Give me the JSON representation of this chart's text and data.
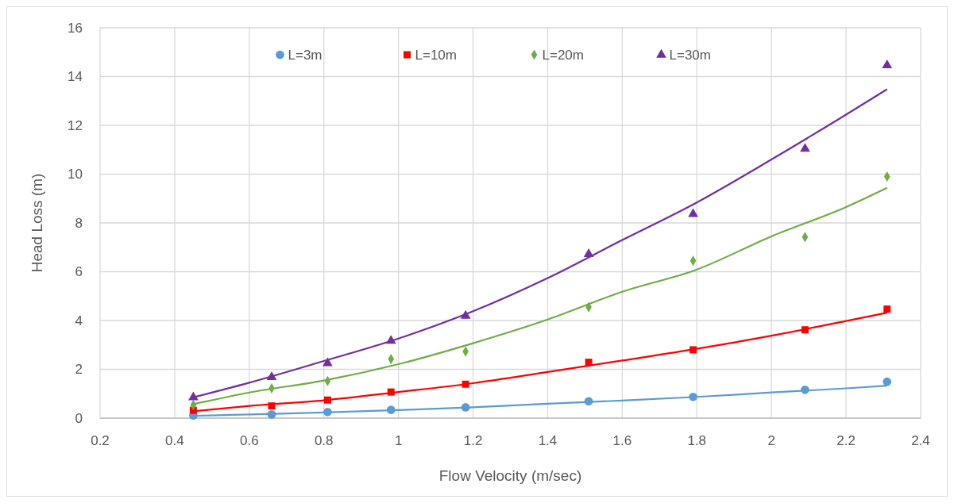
{
  "chart_data": {
    "type": "scatter",
    "xlabel": "Flow Velocity (m/sec)",
    "ylabel": "Head Loss (m)",
    "xlim": [
      0.2,
      2.4
    ],
    "xticks": [
      0.2,
      0.4,
      0.6,
      0.8,
      1,
      1.2,
      1.4,
      1.6,
      1.8,
      2,
      2.2,
      2.4
    ],
    "ylim": [
      0,
      16
    ],
    "yticks": [
      0,
      2,
      4,
      6,
      8,
      10,
      12,
      14,
      16
    ],
    "grid": true,
    "legend": "top",
    "x": [
      0.45,
      0.66,
      0.81,
      0.98,
      1.18,
      1.51,
      1.79,
      2.09,
      2.31
    ],
    "series": [
      {
        "name": "L=3m",
        "color": "#5b9bd5",
        "marker": "circle",
        "values": [
          0.11,
          0.15,
          0.25,
          0.34,
          0.44,
          0.69,
          0.87,
          1.16,
          1.49
        ]
      },
      {
        "name": "L=10m",
        "color": "#ff0000",
        "marker": "square",
        "values": [
          0.32,
          0.5,
          0.74,
          1.07,
          1.39,
          2.29,
          2.8,
          3.62,
          4.47
        ]
      },
      {
        "name": "L=20m",
        "color": "#70ad47",
        "marker": "diamond",
        "values": [
          0.54,
          1.22,
          1.52,
          2.42,
          2.73,
          4.55,
          6.45,
          7.42,
          9.9
        ]
      },
      {
        "name": "L=30m",
        "color": "#7030a0",
        "marker": "triangle",
        "values": [
          0.85,
          1.68,
          2.25,
          3.17,
          4.19,
          6.72,
          8.36,
          11.04,
          14.46
        ]
      },
      {
        "type": "line",
        "color": "#5b9bd5",
        "marker": "none",
        "x": [
          0.45,
          0.6,
          0.8,
          1,
          1.2,
          1.4,
          1.6,
          1.8,
          2,
          2.2,
          2.31
        ],
        "values": [
          0.09,
          0.15,
          0.23,
          0.33,
          0.44,
          0.59,
          0.72,
          0.87,
          1.05,
          1.22,
          1.33
        ]
      },
      {
        "type": "line",
        "color": "#ff0000",
        "marker": "none",
        "x": [
          0.45,
          0.6,
          0.8,
          1,
          1.2,
          1.4,
          1.6,
          1.8,
          2,
          2.2,
          2.31
        ],
        "values": [
          0.28,
          0.5,
          0.73,
          1.07,
          1.43,
          1.89,
          2.36,
          2.84,
          3.38,
          3.98,
          4.32
        ]
      },
      {
        "type": "line",
        "color": "#70ad47",
        "marker": "none",
        "x": [
          0.45,
          0.6,
          0.8,
          1,
          1.2,
          1.4,
          1.6,
          1.8,
          2,
          2.2,
          2.31
        ],
        "values": [
          0.57,
          1.05,
          1.54,
          2.21,
          3.07,
          4.04,
          5.18,
          6.09,
          7.45,
          8.65,
          9.44
        ]
      },
      {
        "type": "line",
        "color": "#7030a0",
        "marker": "none",
        "x": [
          0.45,
          0.6,
          0.8,
          1,
          1.2,
          1.4,
          1.6,
          1.8,
          2,
          2.2,
          2.31
        ],
        "values": [
          0.85,
          1.45,
          2.34,
          3.26,
          4.38,
          5.74,
          7.3,
          8.84,
          10.6,
          12.44,
          13.48
        ]
      }
    ]
  }
}
